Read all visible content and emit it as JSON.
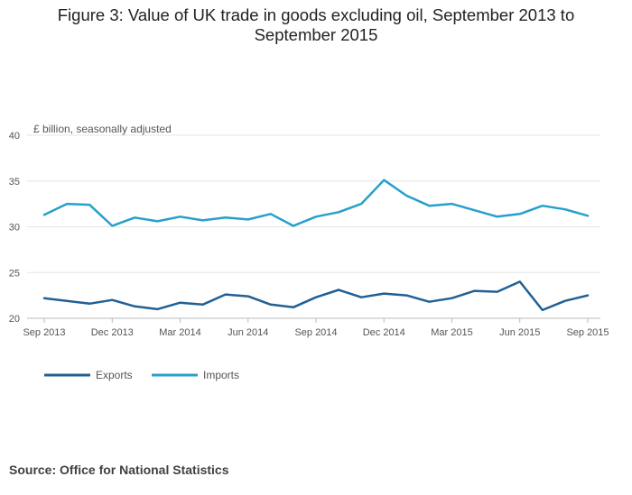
{
  "chart_data": {
    "type": "line",
    "title": "Figure 3: Value of UK trade in goods excluding oil, September 2013 to September 2015",
    "ylabel": "£ billion, seasonally adjusted",
    "ylim": [
      20,
      40
    ],
    "yticks": [
      20,
      25,
      30,
      35,
      40
    ],
    "grid": true,
    "legend_position": "bottom-left",
    "x": [
      "Sep 2013",
      "Oct 2013",
      "Nov 2013",
      "Dec 2013",
      "Jan 2014",
      "Feb 2014",
      "Mar 2014",
      "Apr 2014",
      "May 2014",
      "Jun 2014",
      "Jul 2014",
      "Aug 2014",
      "Sep 2014",
      "Oct 2014",
      "Nov 2014",
      "Dec 2014",
      "Jan 2015",
      "Feb 2015",
      "Mar 2015",
      "Apr 2015",
      "May 2015",
      "Jun 2015",
      "Jul 2015",
      "Aug 2015",
      "Sep 2015"
    ],
    "xtick_labels": [
      "Sep 2013",
      "Dec 2013",
      "Mar 2014",
      "Jun 2014",
      "Sep 2014",
      "Dec 2014",
      "Mar 2015",
      "Jun 2015",
      "Sep 2015"
    ],
    "series": [
      {
        "name": "Exports",
        "color": "#206095",
        "values": [
          22.2,
          21.9,
          21.6,
          22.0,
          21.3,
          21.0,
          21.7,
          21.5,
          22.6,
          22.4,
          21.5,
          21.2,
          22.3,
          23.1,
          22.3,
          22.7,
          22.5,
          21.8,
          22.2,
          23.0,
          22.9,
          24.0,
          20.9,
          21.9,
          22.5
        ]
      },
      {
        "name": "Imports",
        "color": "#27a0cc",
        "values": [
          31.3,
          32.5,
          32.4,
          30.1,
          31.0,
          30.6,
          31.1,
          30.7,
          31.0,
          30.8,
          31.4,
          30.1,
          31.1,
          31.6,
          32.5,
          35.1,
          33.4,
          32.3,
          32.5,
          31.8,
          31.1,
          31.4,
          32.3,
          31.9,
          31.2
        ]
      }
    ]
  },
  "source": "Source: Office for National Statistics"
}
